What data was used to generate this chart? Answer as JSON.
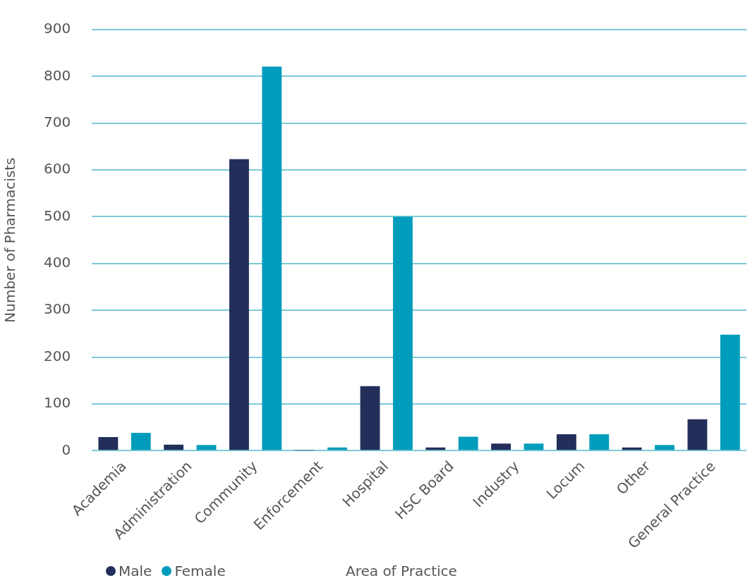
{
  "chart_data": {
    "type": "bar",
    "xlabel": "Area of Practice",
    "ylabel": "Number of Pharmacists",
    "categories": [
      "Academia",
      "Administration",
      "Community",
      "Enforcement",
      "Hospital",
      "HSC Board",
      "Industry",
      "Locum",
      "Other",
      "General Practice"
    ],
    "series": [
      {
        "name": "Male",
        "color": "#232f5a",
        "values": [
          29,
          13,
          623,
          1,
          138,
          7,
          15,
          35,
          7,
          67
        ]
      },
      {
        "name": "Female",
        "color": "#009cbb",
        "values": [
          38,
          12,
          821,
          7,
          500,
          30,
          15,
          35,
          12,
          248
        ]
      }
    ],
    "ylim": [
      0,
      900
    ],
    "yticks": [
      0,
      100,
      200,
      300,
      400,
      500,
      600,
      700,
      800,
      900
    ],
    "grid": "y",
    "legend": "bottom left"
  }
}
